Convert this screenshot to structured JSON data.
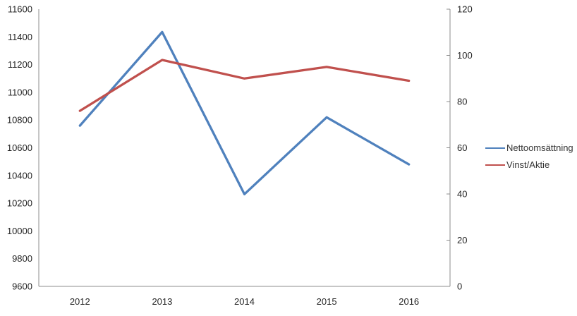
{
  "chart_data": {
    "type": "line",
    "title": "",
    "categories": [
      "2012",
      "2013",
      "2014",
      "2015",
      "2016"
    ],
    "series": [
      {
        "name": "Nettoomsättning",
        "axis": "left",
        "color": "#4F81BD",
        "values": [
          10760,
          11435,
          10265,
          10820,
          10480
        ]
      },
      {
        "name": "Vinst/Aktie",
        "axis": "right",
        "color": "#C0504D",
        "values": [
          76,
          98,
          90,
          95,
          89
        ]
      }
    ],
    "axes": {
      "left": {
        "min": 9600,
        "max": 11600,
        "step": 200,
        "tick_labels": [
          "9600",
          "9800",
          "10000",
          "10200",
          "10400",
          "10600",
          "10800",
          "11000",
          "11200",
          "11400",
          "11600"
        ]
      },
      "right": {
        "min": 0,
        "max": 120,
        "step": 20,
        "tick_labels": [
          "0",
          "20",
          "40",
          "60",
          "80",
          "100",
          "120"
        ]
      }
    },
    "grid": false,
    "legend_position": "right",
    "colors": {
      "axis_line": "#8C8C8C",
      "tick_text": "#262626",
      "legend_text": "#333333",
      "background": "#FFFFFF"
    }
  }
}
